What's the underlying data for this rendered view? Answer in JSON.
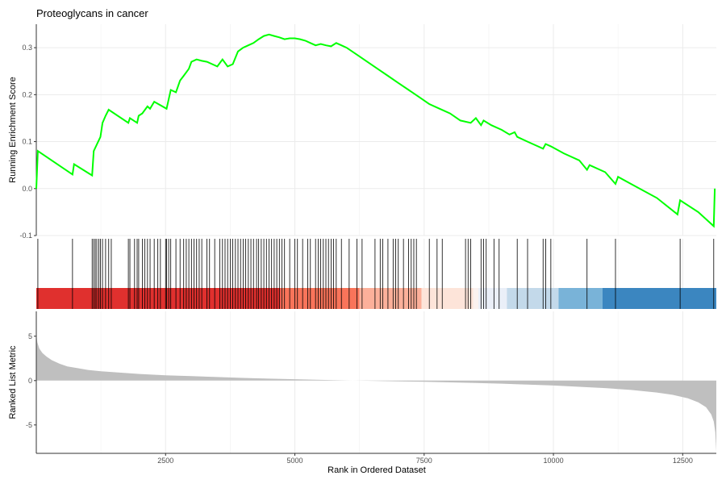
{
  "chart_data": {
    "type": "line",
    "title": "Proteoglycans in cancer",
    "xlabel": "Rank in Ordered Dataset",
    "xlim": [
      0,
      13150
    ],
    "x_ticks": [
      2500,
      5000,
      7500,
      10000,
      12500
    ],
    "x_tick_labels": [
      "2500",
      "5000",
      "7500",
      "10000",
      "12500"
    ],
    "grid": true,
    "enrichment_panel": {
      "ylabel": "Running Enrichment Score",
      "ylim": [
        -0.1,
        0.35
      ],
      "y_ticks": [
        -0.1,
        0.0,
        0.1,
        0.2,
        0.3
      ],
      "y_tick_labels": [
        "-0.1",
        "0.0",
        "0.1",
        "0.2",
        "0.3"
      ],
      "line_color": "#00ff00",
      "series": [
        {
          "x": [
            0,
            30,
            700,
            730,
            1080,
            1110,
            1240,
            1280,
            1340,
            1400,
            1780,
            1810,
            1950,
            1980,
            2050,
            2150,
            2200,
            2280,
            2520,
            2600,
            2700,
            2780,
            2850,
            2950,
            3000,
            3100,
            3200,
            3300,
            3400,
            3500,
            3600,
            3700,
            3800,
            3900,
            4000,
            4100,
            4200,
            4300,
            4400,
            4500,
            4600,
            4700,
            4800,
            4900,
            5000,
            5100,
            5200,
            5300,
            5400,
            5500,
            5600,
            5700,
            5800,
            5900,
            6000,
            6200,
            6400,
            6600,
            6800,
            7000,
            7200,
            7400,
            7600,
            7800,
            8000,
            8200,
            8400,
            8500,
            8600,
            8650,
            8800,
            9000,
            9150,
            9250,
            9300,
            9500,
            9700,
            9800,
            9850,
            9950,
            10200,
            10500,
            10650,
            10700,
            11000,
            11200,
            11250,
            11500,
            12000,
            12400,
            12450,
            12800,
            13100,
            13120
          ],
          "values": [
            0.0,
            0.08,
            0.03,
            0.052,
            0.028,
            0.08,
            0.11,
            0.14,
            0.155,
            0.168,
            0.14,
            0.15,
            0.14,
            0.155,
            0.16,
            0.175,
            0.17,
            0.185,
            0.17,
            0.21,
            0.205,
            0.23,
            0.24,
            0.255,
            0.27,
            0.275,
            0.272,
            0.27,
            0.265,
            0.26,
            0.275,
            0.26,
            0.265,
            0.292,
            0.3,
            0.305,
            0.31,
            0.318,
            0.325,
            0.328,
            0.325,
            0.322,
            0.318,
            0.32,
            0.32,
            0.318,
            0.315,
            0.31,
            0.305,
            0.308,
            0.305,
            0.303,
            0.31,
            0.305,
            0.3,
            0.285,
            0.27,
            0.255,
            0.24,
            0.225,
            0.21,
            0.195,
            0.18,
            0.17,
            0.16,
            0.145,
            0.14,
            0.15,
            0.135,
            0.145,
            0.135,
            0.125,
            0.115,
            0.12,
            0.11,
            0.1,
            0.09,
            0.085,
            0.095,
            0.09,
            0.075,
            0.06,
            0.04,
            0.05,
            0.035,
            0.01,
            0.025,
            0.01,
            -0.02,
            -0.055,
            -0.025,
            -0.05,
            -0.08,
            0.0
          ]
        }
      ]
    },
    "hits_panel": {
      "gene_ranks": [
        30,
        700,
        1080,
        1110,
        1140,
        1170,
        1210,
        1240,
        1280,
        1340,
        1400,
        1450,
        1780,
        1810,
        1900,
        1950,
        1980,
        2050,
        2100,
        2150,
        2200,
        2280,
        2350,
        2400,
        2500,
        2520,
        2560,
        2600,
        2700,
        2780,
        2850,
        2900,
        2950,
        3000,
        3050,
        3100,
        3150,
        3200,
        3300,
        3350,
        3450,
        3550,
        3600,
        3650,
        3700,
        3750,
        3800,
        3850,
        3900,
        3950,
        4000,
        4050,
        4100,
        4150,
        4200,
        4260,
        4300,
        4350,
        4400,
        4450,
        4500,
        4550,
        4600,
        4650,
        4700,
        4750,
        4800,
        4900,
        5000,
        5050,
        5150,
        5250,
        5300,
        5400,
        5450,
        5500,
        5550,
        5600,
        5650,
        5700,
        5750,
        5800,
        5900,
        6050,
        6200,
        6300,
        6550,
        6650,
        6700,
        6800,
        6900,
        6950,
        7000,
        7100,
        7200,
        7250,
        7300,
        7350,
        7600,
        7750,
        7850,
        8300,
        8350,
        8400,
        8600,
        8650,
        8700,
        8850,
        8950,
        9300,
        9500,
        9800,
        9850,
        9950,
        10650,
        11200,
        12450,
        13100
      ],
      "color_bands": [
        {
          "from": 0,
          "to": 4720,
          "color": "#e0302e"
        },
        {
          "from": 4720,
          "to": 6250,
          "color": "#f9745a"
        },
        {
          "from": 6250,
          "to": 7450,
          "color": "#fcb09a"
        },
        {
          "from": 7450,
          "to": 8450,
          "color": "#fde4d9"
        },
        {
          "from": 8450,
          "to": 8550,
          "color": "#fbf2ef"
        },
        {
          "from": 8550,
          "to": 9100,
          "color": "#eaeff8"
        },
        {
          "from": 9100,
          "to": 10100,
          "color": "#c3d9ea"
        },
        {
          "from": 10100,
          "to": 10950,
          "color": "#79b3d8"
        },
        {
          "from": 10950,
          "to": 13150,
          "color": "#3b86c0"
        }
      ]
    },
    "ranked_panel": {
      "ylabel": "Ranked List Metric",
      "ylim": [
        -8.2,
        7.8
      ],
      "y_ticks": [
        -5,
        0,
        5
      ],
      "y_tick_labels": [
        "-5",
        "0",
        "5"
      ],
      "fill_color": "#bfbfbf",
      "series": [
        {
          "x": [
            0,
            20,
            60,
            120,
            200,
            300,
            450,
            600,
            800,
            1000,
            1250,
            1500,
            2000,
            2500,
            3000,
            3500,
            4000,
            4500,
            5000,
            5500,
            6000,
            6500,
            7000,
            7500,
            8000,
            8500,
            9000,
            9500,
            10000,
            10500,
            11000,
            11500,
            12000,
            12300,
            12600,
            12800,
            12950,
            13050,
            13100,
            13130,
            13150
          ],
          "values": [
            5.2,
            4.3,
            3.6,
            3.1,
            2.7,
            2.3,
            1.9,
            1.6,
            1.4,
            1.2,
            1.05,
            0.95,
            0.75,
            0.6,
            0.5,
            0.4,
            0.3,
            0.22,
            0.15,
            0.08,
            0.02,
            -0.03,
            -0.08,
            -0.14,
            -0.2,
            -0.27,
            -0.35,
            -0.45,
            -0.55,
            -0.7,
            -0.85,
            -1.05,
            -1.35,
            -1.6,
            -2.0,
            -2.45,
            -3.0,
            -3.8,
            -4.6,
            -5.8,
            -8.0
          ]
        }
      ]
    }
  }
}
